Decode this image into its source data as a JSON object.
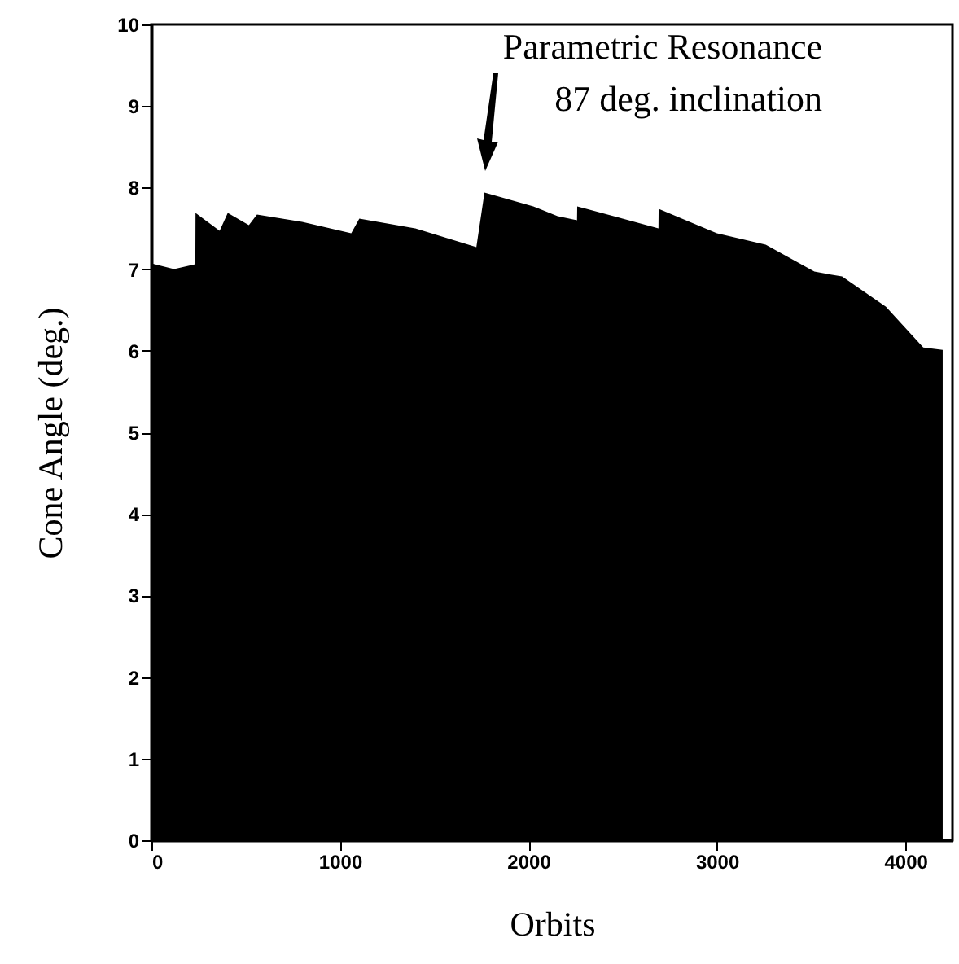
{
  "chart_data": {
    "type": "area",
    "xlabel": "Orbits",
    "ylabel": "Cone Angle (deg.)",
    "x": [
      0,
      120,
      233,
      234,
      362,
      405,
      517,
      560,
      800,
      1060,
      1103,
      1400,
      1724,
      1767,
      2026,
      2155,
      2258,
      2259,
      2500,
      2690,
      2691,
      3000,
      3259,
      3517,
      3664,
      3897,
      4095,
      4198
    ],
    "values": [
      7.07,
      7.0,
      7.06,
      7.69,
      7.47,
      7.69,
      7.54,
      7.67,
      7.58,
      7.44,
      7.62,
      7.5,
      7.27,
      7.94,
      7.77,
      7.65,
      7.6,
      7.77,
      7.62,
      7.5,
      7.74,
      7.44,
      7.3,
      6.97,
      6.91,
      6.54,
      6.04,
      6.01
    ],
    "color": "#000000",
    "xlim": [
      0,
      4250
    ],
    "ylim": [
      0,
      10
    ],
    "xticks": [
      0,
      1000,
      2000,
      3000,
      4000
    ],
    "yticks": [
      0,
      1,
      2,
      3,
      4,
      5,
      6,
      7,
      8,
      9,
      10
    ],
    "annotations": [
      "Parametric Resonance",
      "87 deg. inclination"
    ]
  }
}
